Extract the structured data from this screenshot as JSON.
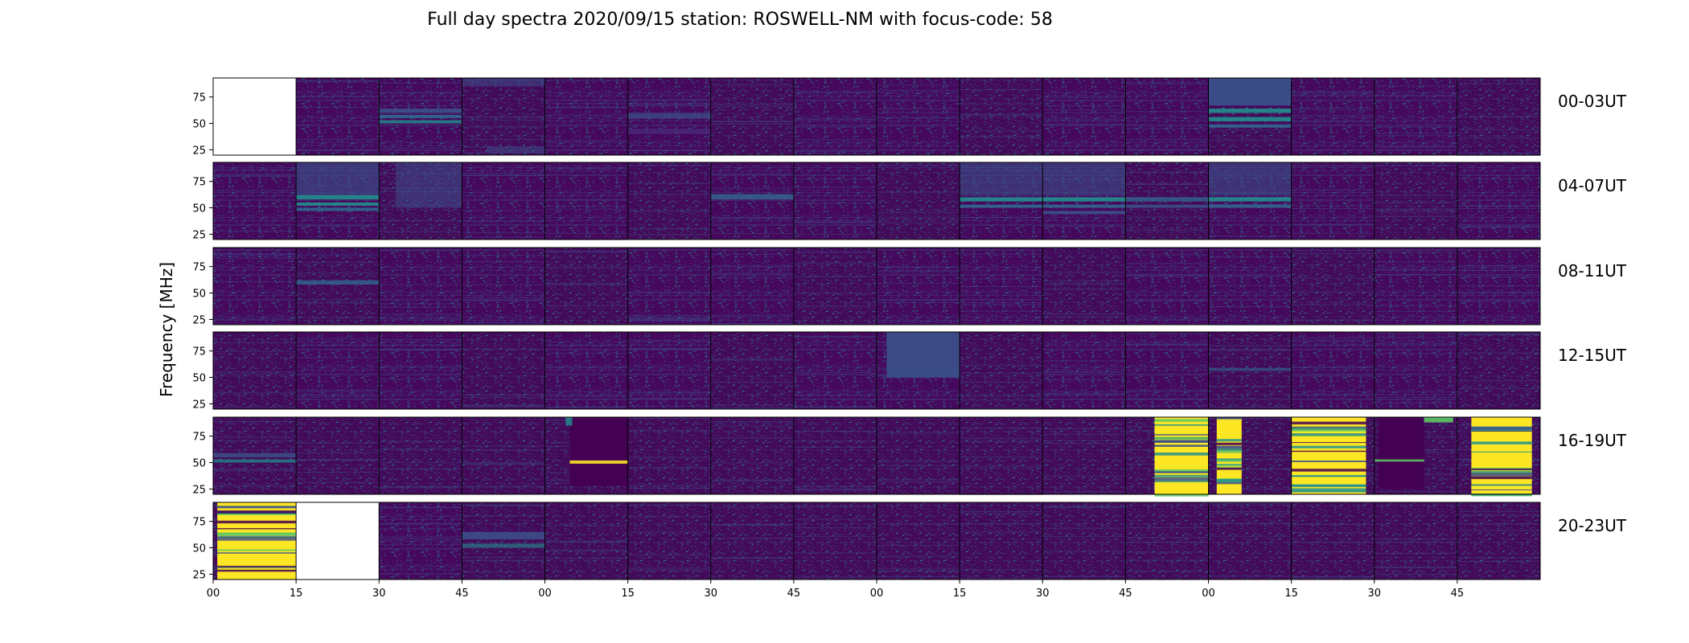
{
  "chart_data": {
    "type": "heatmap",
    "title": "Full day spectra 2020/09/15 station: ROSWELL-NM with focus-code: 58",
    "ylabel": "Frequency [MHz]",
    "yticks": [
      "75",
      "50",
      "25"
    ],
    "ytick_values": [
      75,
      50,
      25
    ],
    "ylim": [
      20,
      93
    ],
    "xticks": [
      "00",
      "15",
      "30",
      "45",
      "00",
      "15",
      "30",
      "45",
      "00",
      "15",
      "30",
      "45",
      "00",
      "15",
      "30",
      "45"
    ],
    "row_labels": [
      "00-03UT",
      "04-07UT",
      "08-11UT",
      "12-15UT",
      "16-19UT",
      "20-23UT"
    ],
    "columns_per_row": 16,
    "colormap": [
      "#440154",
      "#3b528b",
      "#21908d",
      "#5dc963",
      "#fde725"
    ],
    "missing_tiles": [
      [
        0,
        0
      ],
      [
        5,
        1
      ]
    ]
  }
}
